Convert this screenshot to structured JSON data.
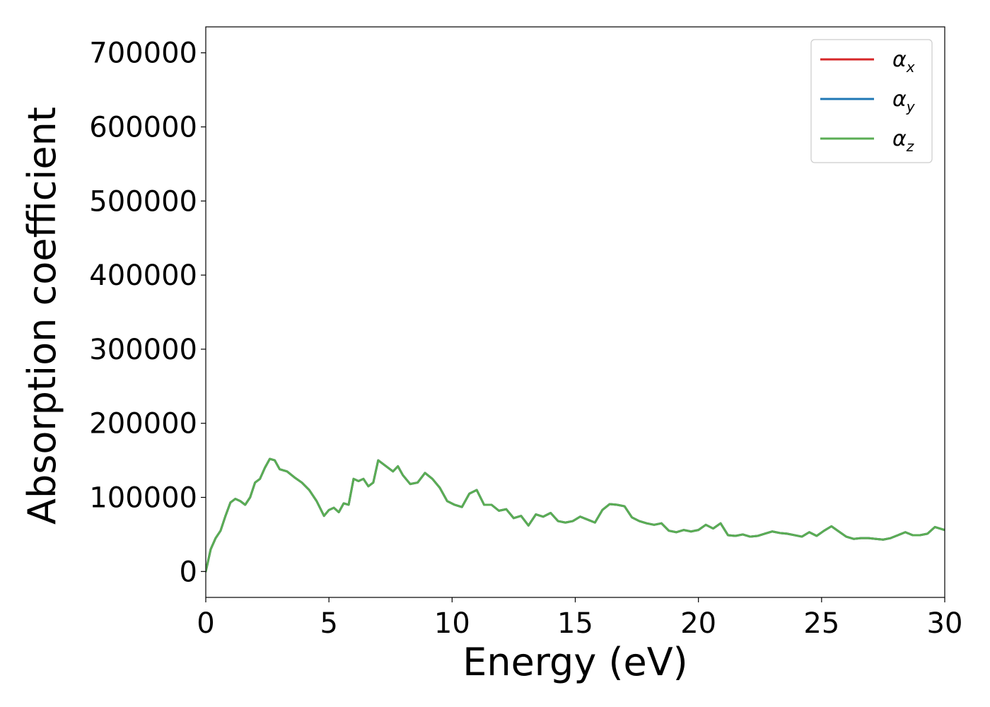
{
  "chart_data": {
    "type": "line",
    "xlabel": "Energy (eV)",
    "ylabel": "Absorption coefficient",
    "xlim": [
      0,
      30
    ],
    "ylim": [
      -35000,
      735000
    ],
    "xticks": [
      0,
      5,
      10,
      15,
      20,
      25,
      30
    ],
    "xtick_labels": [
      "0",
      "5",
      "10",
      "15",
      "20",
      "25",
      "30"
    ],
    "yticks": [
      0,
      100000,
      200000,
      300000,
      400000,
      500000,
      600000,
      700000
    ],
    "ytick_labels": [
      "0",
      "100000",
      "200000",
      "300000",
      "400000",
      "500000",
      "600000",
      "700000"
    ],
    "grid": false,
    "legend_position": "top-right",
    "x": [
      0,
      0.2,
      0.4,
      0.6,
      0.8,
      1.0,
      1.2,
      1.4,
      1.6,
      1.8,
      2.0,
      2.2,
      2.4,
      2.6,
      2.8,
      3.0,
      3.3,
      3.6,
      3.9,
      4.2,
      4.5,
      4.8,
      5.0,
      5.2,
      5.4,
      5.6,
      5.8,
      6.0,
      6.2,
      6.4,
      6.6,
      6.8,
      7.0,
      7.2,
      7.4,
      7.6,
      7.8,
      8.0,
      8.3,
      8.6,
      8.9,
      9.2,
      9.5,
      9.8,
      10.1,
      10.4,
      10.7,
      11.0,
      11.3,
      11.6,
      11.9,
      12.2,
      12.5,
      12.8,
      13.1,
      13.4,
      13.7,
      14.0,
      14.3,
      14.6,
      14.9,
      15.2,
      15.5,
      15.8,
      16.1,
      16.4,
      16.7,
      17.0,
      17.3,
      17.6,
      17.9,
      18.2,
      18.5,
      18.8,
      19.1,
      19.4,
      19.7,
      20.0,
      20.3,
      20.6,
      20.9,
      21.2,
      21.5,
      21.8,
      22.1,
      22.4,
      22.7,
      23.0,
      23.3,
      23.6,
      23.9,
      24.2,
      24.5,
      24.8,
      25.1,
      25.4,
      25.7,
      26.0,
      26.3,
      26.6,
      26.9,
      27.2,
      27.5,
      27.8,
      28.1,
      28.4,
      28.7,
      29.0,
      29.3,
      29.6,
      30.0
    ],
    "series": [
      {
        "name": "α_x",
        "label_main": "α",
        "label_sub": "x",
        "color": "#d62728",
        "y": [
          0,
          30000,
          45000,
          55000,
          75000,
          93000,
          98000,
          95000,
          90000,
          100000,
          120000,
          125000,
          140000,
          152000,
          150000,
          138000,
          135000,
          127000,
          120000,
          110000,
          95000,
          75000,
          83000,
          86000,
          80000,
          92000,
          90000,
          125000,
          122000,
          125000,
          115000,
          120000,
          150000,
          145000,
          140000,
          135000,
          142000,
          130000,
          118000,
          120000,
          133000,
          125000,
          113000,
          95000,
          90000,
          87000,
          105000,
          110000,
          90000,
          90000,
          82000,
          84000,
          72000,
          75000,
          62000,
          77000,
          74000,
          79000,
          68000,
          66000,
          68000,
          74000,
          70000,
          66000,
          83000,
          91000,
          90000,
          88000,
          73000,
          68000,
          65000,
          63000,
          65000,
          55000,
          53000,
          56000,
          54000,
          56000,
          63000,
          58000,
          65000,
          49000,
          48000,
          50000,
          47000,
          48000,
          51000,
          54000,
          52000,
          51000,
          49000,
          47000,
          53000,
          48000,
          55000,
          61000,
          54000,
          47000,
          44000,
          45000,
          45000,
          44000,
          43000,
          45000,
          49000,
          53000,
          49000,
          49000,
          51000,
          60000,
          56000
        ]
      },
      {
        "name": "α_y",
        "label_main": "α",
        "label_sub": "y",
        "color": "#1f77b4",
        "y": [
          0,
          30000,
          45000,
          55000,
          75000,
          93000,
          98000,
          95000,
          90000,
          100000,
          120000,
          125000,
          140000,
          152000,
          150000,
          138000,
          135000,
          127000,
          120000,
          110000,
          95000,
          75000,
          83000,
          86000,
          80000,
          92000,
          90000,
          125000,
          122000,
          125000,
          115000,
          120000,
          150000,
          145000,
          140000,
          135000,
          142000,
          130000,
          118000,
          120000,
          133000,
          125000,
          113000,
          95000,
          90000,
          87000,
          105000,
          110000,
          90000,
          90000,
          82000,
          84000,
          72000,
          75000,
          62000,
          77000,
          74000,
          79000,
          68000,
          66000,
          68000,
          74000,
          70000,
          66000,
          83000,
          91000,
          90000,
          88000,
          73000,
          68000,
          65000,
          63000,
          65000,
          55000,
          53000,
          56000,
          54000,
          56000,
          63000,
          58000,
          65000,
          49000,
          48000,
          50000,
          47000,
          48000,
          51000,
          54000,
          52000,
          51000,
          49000,
          47000,
          53000,
          48000,
          55000,
          61000,
          54000,
          47000,
          44000,
          45000,
          45000,
          44000,
          43000,
          45000,
          49000,
          53000,
          49000,
          49000,
          51000,
          60000,
          56000
        ]
      },
      {
        "name": "α_z",
        "label_main": "α",
        "label_sub": "z",
        "color": "#5aad54",
        "y": [
          0,
          30000,
          45000,
          55000,
          75000,
          93000,
          98000,
          95000,
          90000,
          100000,
          120000,
          125000,
          140000,
          152000,
          150000,
          138000,
          135000,
          127000,
          120000,
          110000,
          95000,
          75000,
          83000,
          86000,
          80000,
          92000,
          90000,
          125000,
          122000,
          125000,
          115000,
          120000,
          150000,
          145000,
          140000,
          135000,
          142000,
          130000,
          118000,
          120000,
          133000,
          125000,
          113000,
          95000,
          90000,
          87000,
          105000,
          110000,
          90000,
          90000,
          82000,
          84000,
          72000,
          75000,
          62000,
          77000,
          74000,
          79000,
          68000,
          66000,
          68000,
          74000,
          70000,
          66000,
          83000,
          91000,
          90000,
          88000,
          73000,
          68000,
          65000,
          63000,
          65000,
          55000,
          53000,
          56000,
          54000,
          56000,
          63000,
          58000,
          65000,
          49000,
          48000,
          50000,
          47000,
          48000,
          51000,
          54000,
          52000,
          51000,
          49000,
          47000,
          53000,
          48000,
          55000,
          61000,
          54000,
          47000,
          44000,
          45000,
          45000,
          44000,
          43000,
          45000,
          49000,
          53000,
          49000,
          49000,
          51000,
          60000,
          56000
        ]
      }
    ]
  }
}
